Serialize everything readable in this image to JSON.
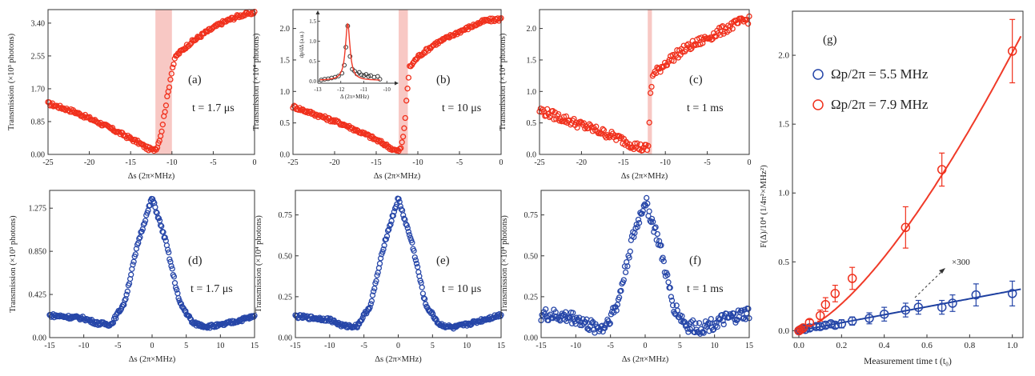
{
  "figure_panels": [
    "(a)",
    "(b)",
    "(c)",
    "(d)",
    "(e)",
    "(f)",
    "(g)"
  ],
  "colors": {
    "red": "#f0301c",
    "blue": "#2646a8",
    "band": "#f8c8c4",
    "red_line": "#f03a28",
    "blue_line": "#1e40a0"
  },
  "chart_data": [
    {
      "panel": "(a)",
      "type": "scatter",
      "annotation": "t = 1.7 μs",
      "xlabel": "Δs (2π×MHz)",
      "ylabel": "Transmission (×10³ photons)",
      "xlim": [
        -25,
        0
      ],
      "ylim": [
        0,
        3.75
      ],
      "xticks": [
        -25,
        -20,
        -15,
        -10,
        -5,
        0
      ],
      "xticklabels": [
        "-25",
        "-20",
        "-15",
        "-10",
        "-5",
        "0"
      ],
      "yticks": [
        0,
        0.85,
        1.7,
        2.55,
        3.4
      ],
      "yticklabels": [
        "0.00",
        "0.85",
        "1.70",
        "2.55",
        "3.40"
      ],
      "shaded_region": [
        -12,
        -10
      ],
      "series": [
        {
          "marker": "red-circle",
          "knots": [
            [
              -25,
              1.32
            ],
            [
              -22,
              1.12
            ],
            [
              -19,
              0.84
            ],
            [
              -16,
              0.52
            ],
            [
              -14,
              0.3
            ],
            [
              -13,
              0.16
            ],
            [
              -12.3,
              0.11
            ],
            [
              -11.8,
              0.18
            ],
            [
              -11.3,
              0.55
            ],
            [
              -10.8,
              1.2
            ],
            [
              -10.3,
              1.8
            ],
            [
              -10,
              2.2
            ],
            [
              -9.5,
              2.55
            ],
            [
              -8,
              2.85
            ],
            [
              -6,
              3.15
            ],
            [
              -4,
              3.4
            ],
            [
              -2,
              3.58
            ],
            [
              0,
              3.68
            ]
          ]
        }
      ]
    },
    {
      "panel": "(b)",
      "type": "scatter",
      "annotation": "t = 10 μs",
      "xlabel": "Δs (2π×MHz)",
      "ylabel": "Transmission (×10⁴ photons)",
      "xlim": [
        -25,
        0
      ],
      "ylim": [
        0,
        2.3
      ],
      "xticks": [
        -25,
        -20,
        -15,
        -10,
        -5,
        0
      ],
      "xticklabels": [
        "-25",
        "-20",
        "-15",
        "-10",
        "-5",
        "0"
      ],
      "yticks": [
        0,
        0.5,
        1.0,
        1.5,
        2.0
      ],
      "yticklabels": [
        "0.0",
        "0.5",
        "1.0",
        "1.5",
        "2.0"
      ],
      "shaded_region": [
        -12.3,
        -11.2
      ],
      "series": [
        {
          "marker": "red-circle",
          "knots": [
            [
              -25,
              0.76
            ],
            [
              -22,
              0.62
            ],
            [
              -19,
              0.48
            ],
            [
              -16,
              0.3
            ],
            [
              -14,
              0.16
            ],
            [
              -13,
              0.08
            ],
            [
              -12.4,
              0.05
            ],
            [
              -12.0,
              0.1
            ],
            [
              -11.7,
              0.35
            ],
            [
              -11.5,
              0.6
            ],
            [
              -11.3,
              0.97
            ],
            [
              -11.0,
              1.38
            ],
            [
              -10,
              1.55
            ],
            [
              -8,
              1.75
            ],
            [
              -5,
              1.95
            ],
            [
              -2,
              2.12
            ],
            [
              0,
              2.15
            ]
          ]
        }
      ],
      "inset": {
        "xlabel": "Δ (2π×MHz)",
        "ylabel": "dp/dΔ (a.u.)",
        "xlim": [
          -13,
          -9.8
        ],
        "ylim": [
          -0.05,
          1.55
        ],
        "xticks": [
          -13,
          -12,
          -11,
          -10
        ],
        "xticklabels": [
          "-13",
          "-12",
          "-11",
          "-10"
        ],
        "yticks": [
          0,
          0.5,
          1.0,
          1.5
        ],
        "yticklabels": [
          "0.0",
          "0.5",
          "1.0",
          "1.5"
        ],
        "points": [
          [
            -12.85,
            0.03
          ],
          [
            -12.7,
            0.05
          ],
          [
            -12.55,
            0.06
          ],
          [
            -12.4,
            0.08
          ],
          [
            -12.25,
            0.1
          ],
          [
            -12.1,
            0.13
          ],
          [
            -11.95,
            0.2
          ],
          [
            -11.85,
            0.4
          ],
          [
            -11.78,
            0.85
          ],
          [
            -11.7,
            1.38
          ],
          [
            -11.6,
            0.62
          ],
          [
            -11.5,
            0.3
          ],
          [
            -11.4,
            0.25
          ],
          [
            -11.3,
            0.18
          ],
          [
            -11.2,
            0.22
          ],
          [
            -11.1,
            0.16
          ],
          [
            -11.0,
            0.14
          ],
          [
            -10.9,
            0.17
          ],
          [
            -10.8,
            0.12
          ],
          [
            -10.7,
            0.14
          ],
          [
            -10.55,
            0.1
          ],
          [
            -10.4,
            0.12
          ],
          [
            -10.3,
            0.05
          ]
        ],
        "fit": {
          "type": "lorentzian",
          "x0": -11.7,
          "amplitude": 1.42,
          "width": 0.12,
          "offset": 0.02
        }
      }
    },
    {
      "panel": "(c)",
      "type": "scatter",
      "annotation": "t = 1 ms",
      "xlabel": "Δs (2π×MHz)",
      "ylabel": "Transmission (×10⁴ photons)",
      "xlim": [
        -25,
        0
      ],
      "ylim": [
        0,
        2.3
      ],
      "xticks": [
        -25,
        -20,
        -15,
        -10,
        -5,
        0
      ],
      "xticklabels": [
        "-25",
        "-20",
        "-15",
        "-10",
        "-5",
        "0"
      ],
      "yticks": [
        0,
        0.5,
        1.0,
        1.5,
        2.0
      ],
      "yticklabels": [
        "0.0",
        "0.5",
        "1.0",
        "1.5",
        "2.0"
      ],
      "shaded_region": [
        -12.1,
        -11.6
      ],
      "series": [
        {
          "marker": "red-circle",
          "knots": [
            [
              -25,
              0.7
            ],
            [
              -22,
              0.56
            ],
            [
              -19,
              0.42
            ],
            [
              -16,
              0.28
            ],
            [
              -14,
              0.16
            ],
            [
              -12.8,
              0.1
            ],
            [
              -12.0,
              0.1
            ],
            [
              -11.8,
              0.95
            ],
            [
              -11.5,
              1.25
            ],
            [
              -10,
              1.45
            ],
            [
              -8,
              1.65
            ],
            [
              -5,
              1.85
            ],
            [
              -2,
              2.05
            ],
            [
              0,
              2.15
            ]
          ]
        }
      ]
    },
    {
      "panel": "(d)",
      "type": "scatter",
      "annotation": "t = 1.7 μs",
      "xlabel": "Δs (2π×MHz)",
      "ylabel": "Transmission (×10³ photons)",
      "xlim": [
        -15,
        15
      ],
      "ylim": [
        0,
        1.45
      ],
      "xticks": [
        -15,
        -10,
        -5,
        0,
        5,
        10,
        15
      ],
      "xticklabels": [
        "-15",
        "-10",
        "-5",
        "0",
        "5",
        "10",
        "15"
      ],
      "yticks": [
        0,
        0.425,
        0.85,
        1.275
      ],
      "yticklabels": [
        "0.00",
        "0.425",
        "0.850",
        "1.275"
      ],
      "series": [
        {
          "marker": "blue-circle",
          "knots": [
            [
              -15,
              0.22
            ],
            [
              -10,
              0.19
            ],
            [
              -8,
              0.14
            ],
            [
              -6,
              0.13
            ],
            [
              -4,
              0.35
            ],
            [
              -2,
              0.95
            ],
            [
              0,
              1.38
            ],
            [
              2,
              0.95
            ],
            [
              4,
              0.35
            ],
            [
              6,
              0.14
            ],
            [
              8,
              0.11
            ],
            [
              10,
              0.12
            ],
            [
              15,
              0.21
            ]
          ]
        }
      ]
    },
    {
      "panel": "(e)",
      "type": "scatter",
      "annotation": "t = 10 μs",
      "xlabel": "Δs (2π×MHz)",
      "ylabel": "Transmission (×10⁴ photons)",
      "xlim": [
        -15,
        15
      ],
      "ylim": [
        0,
        0.9
      ],
      "xticks": [
        -15,
        -10,
        -5,
        0,
        5,
        10,
        15
      ],
      "xticklabels": [
        "-15",
        "-10",
        "-5",
        "0",
        "5",
        "10",
        "15"
      ],
      "yticks": [
        0,
        0.25,
        0.5,
        0.75
      ],
      "yticklabels": [
        "0.00",
        "0.25",
        "0.50",
        "0.75"
      ],
      "series": [
        {
          "marker": "blue-circle",
          "knots": [
            [
              -15,
              0.13
            ],
            [
              -10,
              0.11
            ],
            [
              -8,
              0.07
            ],
            [
              -6,
              0.07
            ],
            [
              -4,
              0.2
            ],
            [
              -2,
              0.58
            ],
            [
              0,
              0.85
            ],
            [
              2,
              0.58
            ],
            [
              4,
              0.2
            ],
            [
              6,
              0.08
            ],
            [
              8,
              0.06
            ],
            [
              10,
              0.08
            ],
            [
              15,
              0.14
            ]
          ]
        }
      ]
    },
    {
      "panel": "(f)",
      "type": "scatter",
      "annotation": "t = 1 ms",
      "xlabel": "Δs (2π×MHz)",
      "ylabel": "Transmission (×10⁴ photons)",
      "xlim": [
        -15,
        15
      ],
      "ylim": [
        0,
        0.9
      ],
      "xticks": [
        -15,
        -10,
        -5,
        0,
        5,
        10,
        15
      ],
      "xticklabels": [
        "-15",
        "-10",
        "-5",
        "0",
        "5",
        "10",
        "15"
      ],
      "yticks": [
        0,
        0.25,
        0.5,
        0.75
      ],
      "yticklabels": [
        "0.00",
        "0.25",
        "0.50",
        "0.75"
      ],
      "series": [
        {
          "marker": "blue-circle",
          "knots": [
            [
              -15,
              0.14
            ],
            [
              -10,
              0.12
            ],
            [
              -8,
              0.07
            ],
            [
              -6,
              0.06
            ],
            [
              -4,
              0.2
            ],
            [
              -2,
              0.58
            ],
            [
              0,
              0.84
            ],
            [
              2,
              0.58
            ],
            [
              4,
              0.2
            ],
            [
              6,
              0.07
            ],
            [
              8,
              0.06
            ],
            [
              10,
              0.09
            ],
            [
              15,
              0.15
            ]
          ]
        }
      ]
    },
    {
      "panel": "(g)",
      "type": "scatter",
      "xlabel": "Measurement time t (t₀)",
      "ylabel": "F(Δ)/10⁴ (1/4π²×MHz²)",
      "xlim": [
        -0.03,
        1.05
      ],
      "ylim": [
        -0.05,
        2.32
      ],
      "xticks": [
        0,
        0.2,
        0.4,
        0.6,
        0.8,
        1.0
      ],
      "xticklabels": [
        "0.0",
        "0.2",
        "0.4",
        "0.6",
        "0.8",
        "1.0"
      ],
      "yticks": [
        0,
        0.5,
        1.0,
        1.5,
        2.0
      ],
      "yticklabels": [
        "0.0",
        "0.5",
        "1.0",
        "1.5",
        "2.0"
      ],
      "legend_placement": "top-left",
      "annotation": "×300",
      "series": [
        {
          "name": "Ωp/2π = 5.5 MHz",
          "color": "blue",
          "x": [
            0.0,
            0.005,
            0.01,
            0.02,
            0.03,
            0.05,
            0.08,
            0.1,
            0.125,
            0.15,
            0.17,
            0.2,
            0.25,
            0.33,
            0.4,
            0.5,
            0.56,
            0.67,
            0.72,
            0.83,
            1.0
          ],
          "y": [
            0.0,
            0.005,
            0.01,
            0.015,
            0.01,
            0.02,
            0.03,
            0.03,
            0.04,
            0.05,
            0.04,
            0.05,
            0.07,
            0.09,
            0.12,
            0.15,
            0.17,
            0.17,
            0.2,
            0.26,
            0.27
          ],
          "error": [
            0.01,
            0.01,
            0.01,
            0.01,
            0.01,
            0.02,
            0.02,
            0.02,
            0.02,
            0.02,
            0.02,
            0.03,
            0.03,
            0.04,
            0.05,
            0.05,
            0.05,
            0.05,
            0.06,
            0.08,
            0.09
          ],
          "fit": {
            "type": "power",
            "a": 0.29,
            "n": 1.0
          }
        },
        {
          "name": "Ωp/2π = 7.9 MHz",
          "color": "red",
          "x": [
            0.0,
            0.01,
            0.02,
            0.05,
            0.1,
            0.125,
            0.17,
            0.25,
            0.5,
            0.67,
            1.0
          ],
          "y": [
            0.0,
            0.01,
            0.02,
            0.06,
            0.11,
            0.19,
            0.27,
            0.38,
            0.75,
            1.17,
            2.03
          ],
          "error": [
            0.01,
            0.01,
            0.01,
            0.02,
            0.04,
            0.05,
            0.06,
            0.08,
            0.15,
            0.12,
            0.23
          ],
          "fit": {
            "type": "power",
            "a": 2.02,
            "n": 1.45
          }
        }
      ]
    }
  ]
}
